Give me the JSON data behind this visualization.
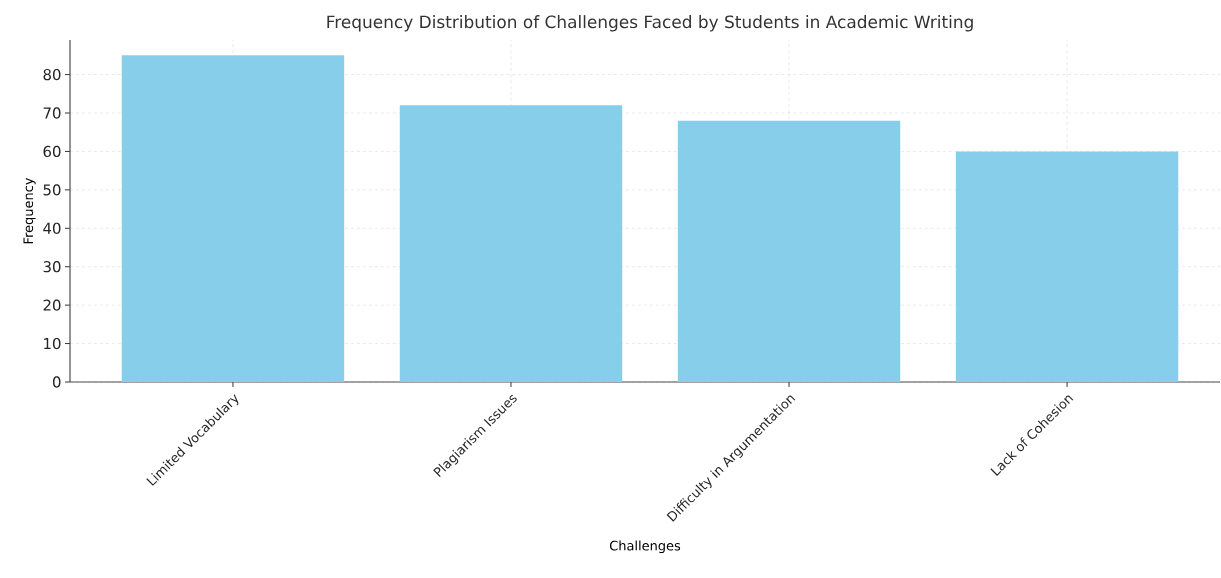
{
  "chart_data": {
    "type": "bar",
    "title": "Frequency Distribution of Challenges Faced by Students in Academic Writing",
    "xlabel": "Challenges",
    "ylabel": "Frequency",
    "categories": [
      "Limited Vocabulary",
      "Plagiarism Issues",
      "Difficulty in Argumentation",
      "Lack of Cohesion"
    ],
    "values": [
      85,
      72,
      68,
      60
    ],
    "color": "#87ceeb",
    "ylim": [
      0,
      89
    ],
    "yticks": [
      0,
      10,
      20,
      30,
      40,
      50,
      60,
      70,
      80
    ],
    "grid": true
  }
}
